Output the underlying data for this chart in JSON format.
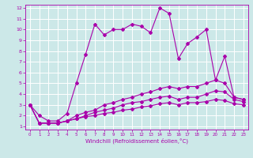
{
  "xlabel": "Windchill (Refroidissement éolien,°C)",
  "bg_color": "#cce8e8",
  "line_color": "#aa00aa",
  "xmin": 0,
  "xmax": 23,
  "ymin": 1,
  "ymax": 12,
  "yticks": [
    1,
    2,
    3,
    4,
    5,
    6,
    7,
    8,
    9,
    10,
    11,
    12
  ],
  "xticks": [
    0,
    1,
    2,
    3,
    4,
    5,
    6,
    7,
    8,
    9,
    10,
    11,
    12,
    13,
    14,
    15,
    16,
    17,
    18,
    19,
    20,
    21,
    22,
    23
  ],
  "series1_x": [
    0,
    1,
    2,
    3,
    4,
    5,
    6,
    7,
    8,
    9,
    10,
    11,
    12,
    13,
    14,
    15,
    16,
    17,
    18,
    19,
    20,
    21,
    22,
    23
  ],
  "series1_y": [
    3.0,
    2.0,
    1.5,
    1.5,
    2.2,
    5.0,
    7.7,
    10.5,
    9.5,
    10.0,
    10.0,
    10.5,
    10.3,
    9.7,
    12.0,
    11.5,
    7.3,
    8.7,
    9.3,
    10.0,
    5.3,
    7.5,
    3.7,
    3.5
  ],
  "series2_x": [
    0,
    1,
    2,
    3,
    4,
    5,
    6,
    7,
    8,
    9,
    10,
    11,
    12,
    13,
    14,
    15,
    16,
    17,
    18,
    19,
    20,
    21,
    22,
    23
  ],
  "series2_y": [
    3.0,
    1.3,
    1.3,
    1.3,
    1.5,
    2.0,
    2.3,
    2.5,
    3.0,
    3.2,
    3.5,
    3.7,
    4.0,
    4.2,
    4.5,
    4.7,
    4.5,
    4.7,
    4.7,
    5.0,
    5.3,
    5.0,
    3.7,
    3.5
  ],
  "series3_x": [
    0,
    1,
    2,
    3,
    4,
    5,
    6,
    7,
    8,
    9,
    10,
    11,
    12,
    13,
    14,
    15,
    16,
    17,
    18,
    19,
    20,
    21,
    22,
    23
  ],
  "series3_y": [
    3.0,
    1.3,
    1.3,
    1.3,
    1.5,
    1.7,
    2.0,
    2.3,
    2.5,
    2.7,
    3.0,
    3.2,
    3.3,
    3.5,
    3.7,
    3.8,
    3.5,
    3.7,
    3.7,
    4.0,
    4.3,
    4.2,
    3.5,
    3.3
  ],
  "series4_x": [
    0,
    1,
    2,
    3,
    4,
    5,
    6,
    7,
    8,
    9,
    10,
    11,
    12,
    13,
    14,
    15,
    16,
    17,
    18,
    19,
    20,
    21,
    22,
    23
  ],
  "series4_y": [
    3.0,
    1.3,
    1.3,
    1.3,
    1.5,
    1.7,
    1.9,
    2.0,
    2.2,
    2.3,
    2.5,
    2.6,
    2.8,
    2.9,
    3.1,
    3.2,
    3.0,
    3.2,
    3.2,
    3.3,
    3.5,
    3.4,
    3.1,
    3.0
  ],
  "marker": "D",
  "markersize": 2.0,
  "linewidth": 0.8
}
